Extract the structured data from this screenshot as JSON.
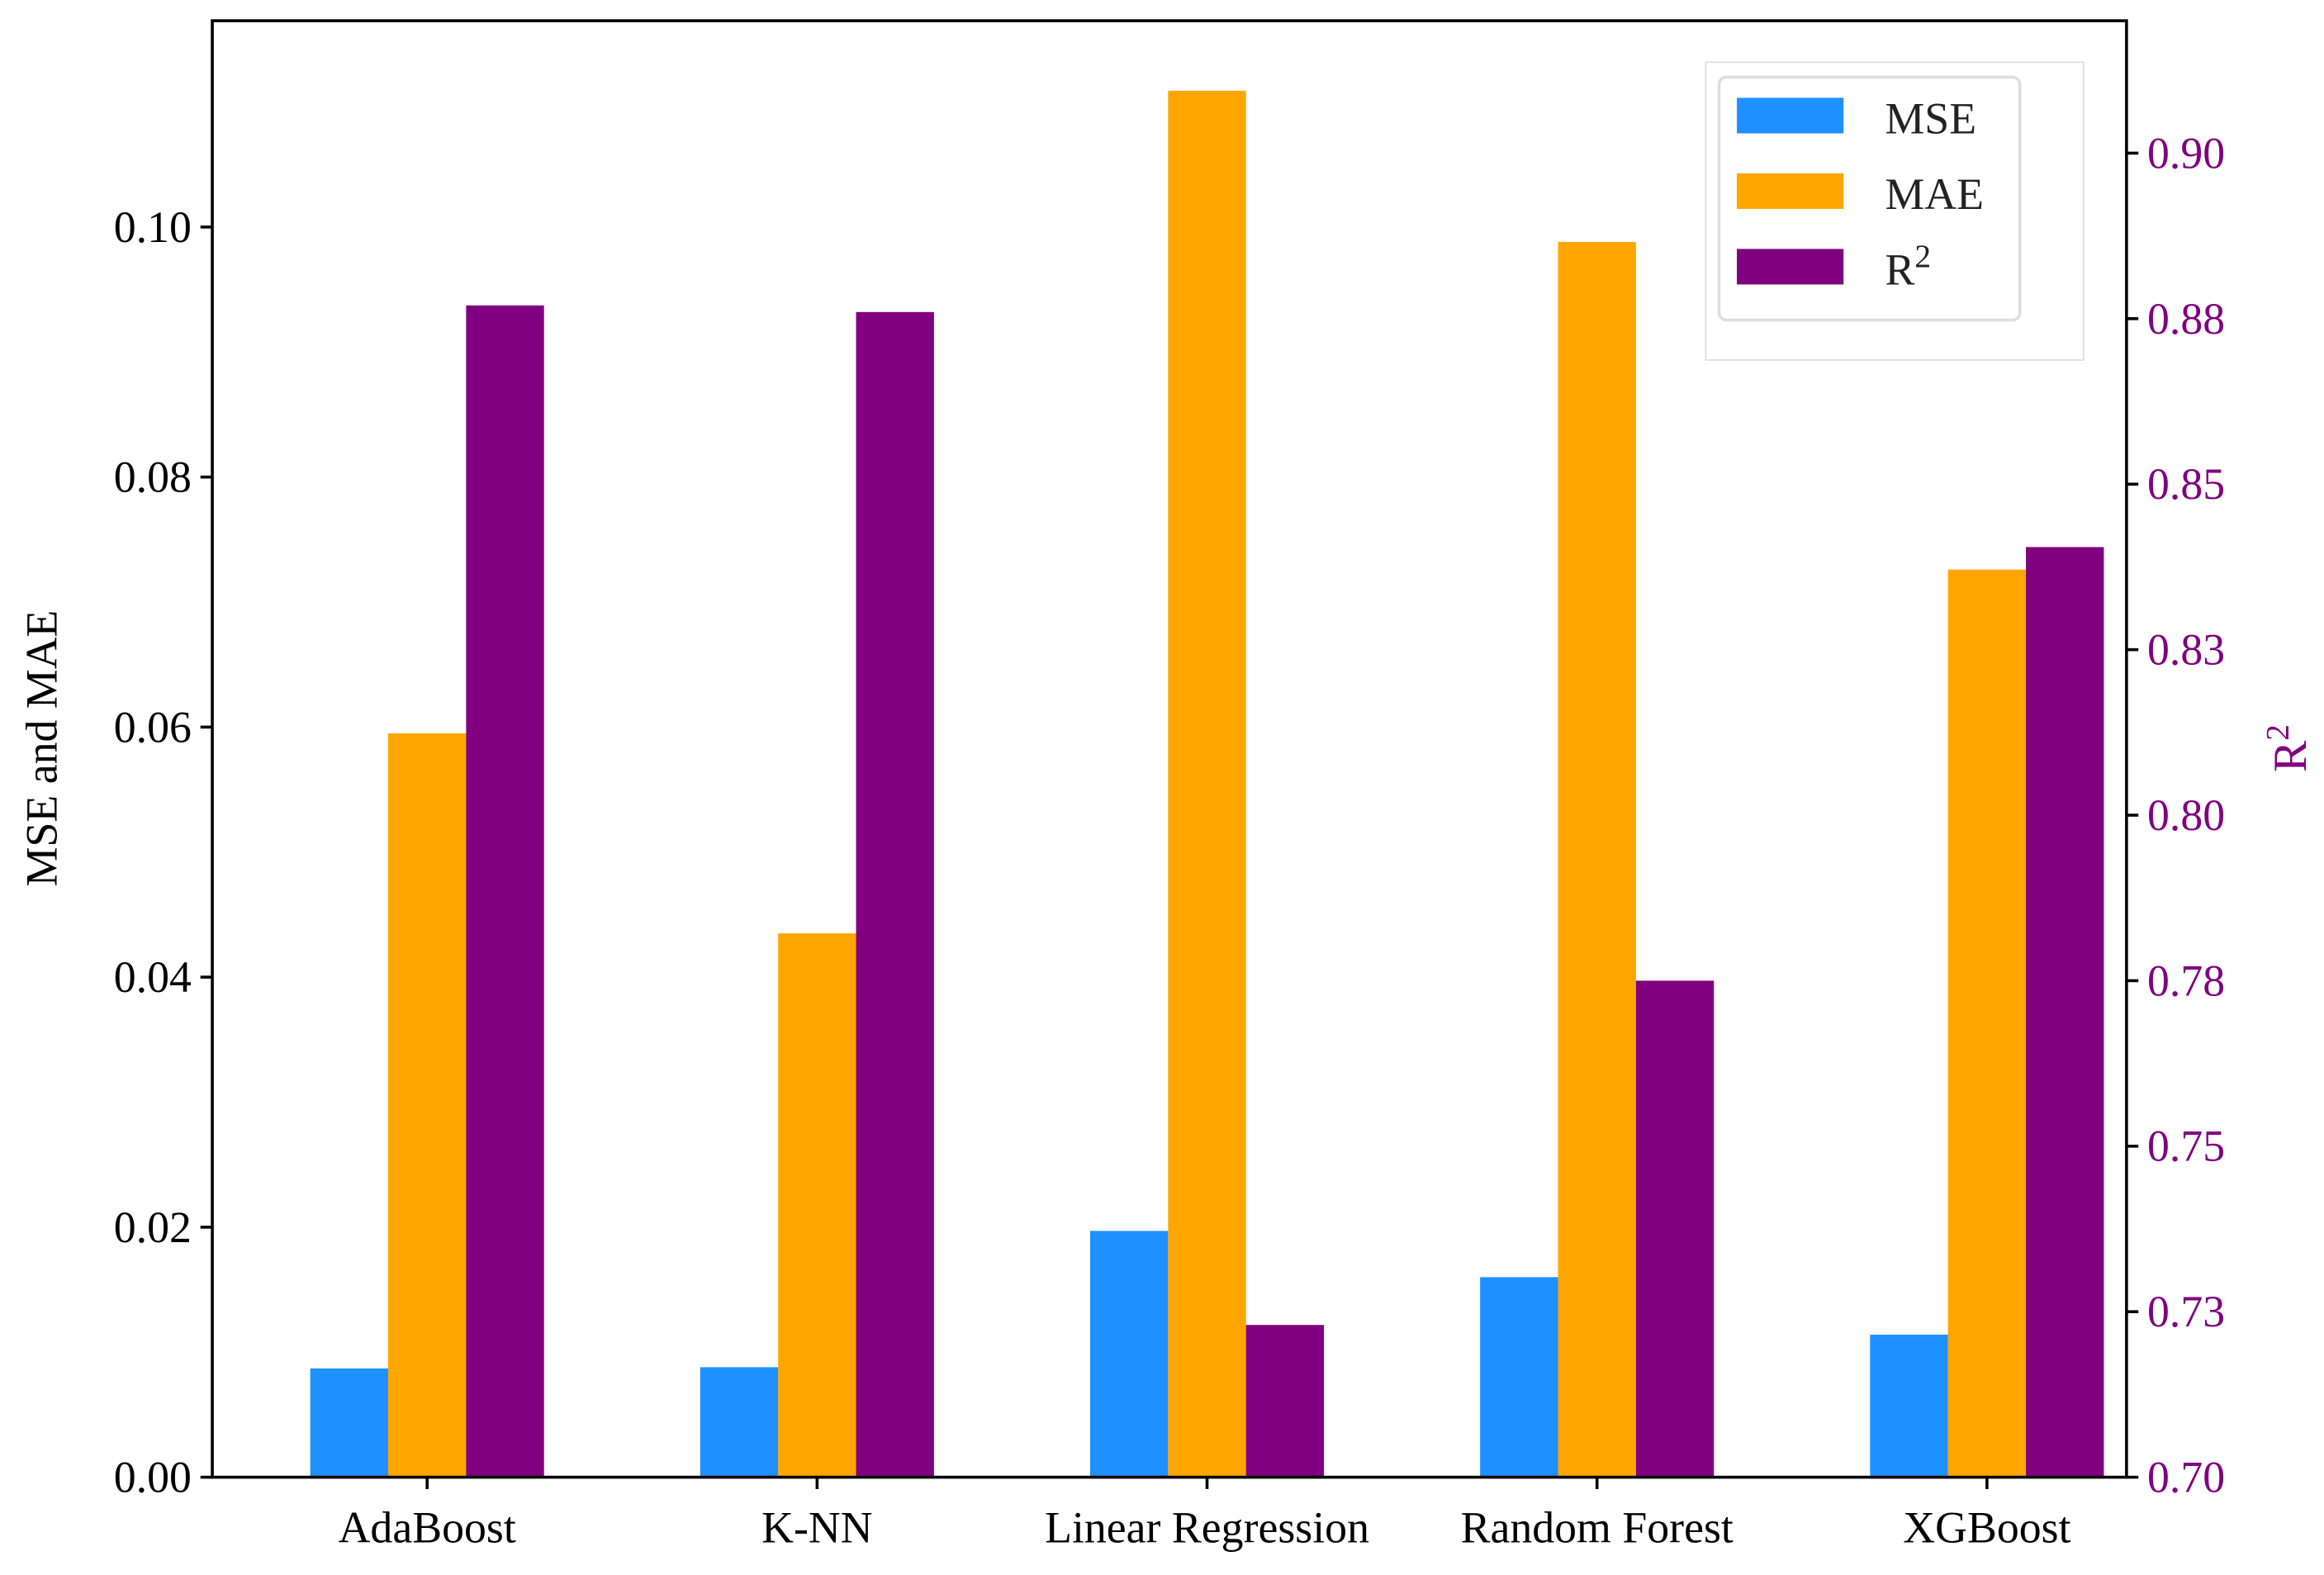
{
  "chart_data": {
    "type": "bar",
    "categories": [
      "AdaBoost",
      "K-NN",
      "Linear Regression",
      "Random Forest",
      "XGBoost"
    ],
    "series": [
      {
        "name": "MSE",
        "axis": "left",
        "color": "#1E90FF",
        "values": [
          0.0087,
          0.0088,
          0.0197,
          0.016,
          0.0114
        ]
      },
      {
        "name": "MAE",
        "axis": "left",
        "color": "#FFA500",
        "values": [
          0.0595,
          0.0435,
          0.1109,
          0.0988,
          0.0726
        ]
      },
      {
        "name": "R",
        "name_superscript": "2",
        "axis": "right",
        "color": "#800080",
        "values": [
          0.877,
          0.876,
          0.723,
          0.775,
          0.8405
        ]
      }
    ],
    "ylabel": "MSE and MAE",
    "ylabel_right": "R",
    "ylabel_right_superscript": "2",
    "ylim": [
      0,
      0.1165
    ],
    "ylim_right": [
      0.7,
      0.92
    ],
    "yticks": [
      {
        "value": 0.0,
        "label": "0.00"
      },
      {
        "value": 0.02,
        "label": "0.02"
      },
      {
        "value": 0.04,
        "label": "0.04"
      },
      {
        "value": 0.06,
        "label": "0.06"
      },
      {
        "value": 0.08,
        "label": "0.08"
      },
      {
        "value": 0.1,
        "label": "0.10"
      }
    ],
    "yticks_right": [
      {
        "value": 0.7,
        "label": "0.70"
      },
      {
        "value": 0.725,
        "label": "0.73"
      },
      {
        "value": 0.75,
        "label": "0.75"
      },
      {
        "value": 0.775,
        "label": "0.78"
      },
      {
        "value": 0.8,
        "label": "0.80"
      },
      {
        "value": 0.825,
        "label": "0.83"
      },
      {
        "value": 0.85,
        "label": "0.85"
      },
      {
        "value": 0.875,
        "label": "0.88"
      },
      {
        "value": 0.9,
        "label": "0.90"
      }
    ],
    "right_axis_color": "#800080",
    "grid": false,
    "legend_position": "top-right"
  }
}
